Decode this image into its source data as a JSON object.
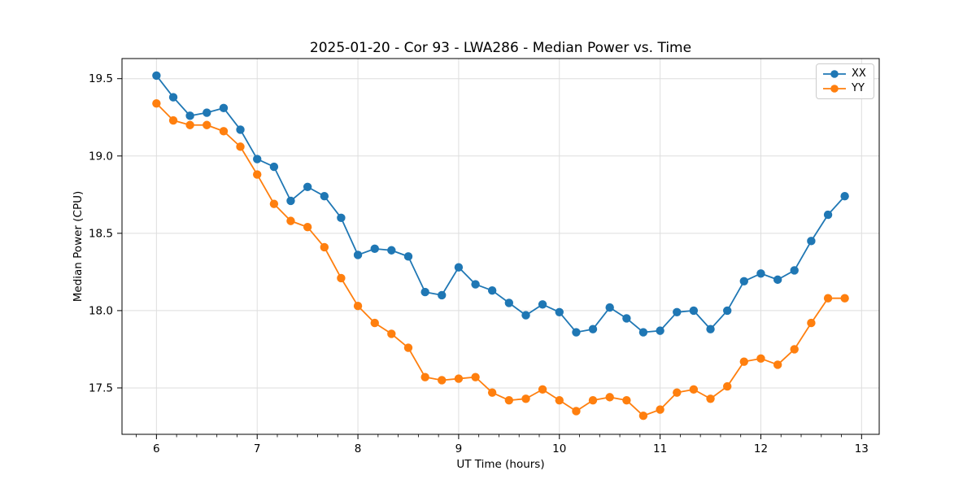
{
  "chart_data": {
    "type": "line",
    "title": "2025-01-20 - Cor 93 - LWA286 - Median Power vs. Time",
    "xlabel": "UT Time (hours)",
    "ylabel": "Median Power (CPU)",
    "xlim": [
      5.658,
      13.175
    ],
    "ylim": [
      17.2,
      19.63
    ],
    "grid": true,
    "grid_color": "#dedede",
    "spine_color": "#000000",
    "background_color": "#ffffff",
    "xticks": {
      "values": [
        6,
        7,
        8,
        9,
        10,
        11,
        12,
        13
      ],
      "labels": [
        "6",
        "7",
        "8",
        "9",
        "10",
        "11",
        "12",
        "13"
      ]
    },
    "yticks": {
      "values": [
        17.5,
        18.0,
        18.5,
        19.0,
        19.5
      ],
      "labels": [
        "17.5",
        "18.0",
        "18.5",
        "19.0",
        "19.5"
      ]
    },
    "minor_xtick_step": 0.2,
    "legend": {
      "position": "upper right"
    },
    "x": [
      6.0,
      6.167,
      6.333,
      6.5,
      6.667,
      6.833,
      7.0,
      7.167,
      7.333,
      7.5,
      7.667,
      7.833,
      8.0,
      8.167,
      8.333,
      8.5,
      8.667,
      8.833,
      9.0,
      9.167,
      9.333,
      9.5,
      9.667,
      9.833,
      10.0,
      10.167,
      10.333,
      10.5,
      10.667,
      10.833,
      11.0,
      11.167,
      11.333,
      11.5,
      11.667,
      11.833,
      12.0,
      12.167,
      12.333,
      12.5,
      12.667,
      12.833
    ],
    "series": [
      {
        "name": "XX",
        "color": "#1f77b4",
        "values": [
          19.52,
          19.38,
          19.26,
          19.28,
          19.31,
          19.17,
          18.98,
          18.93,
          18.71,
          18.8,
          18.74,
          18.6,
          18.36,
          18.4,
          18.39,
          18.35,
          18.12,
          18.1,
          18.28,
          18.17,
          18.13,
          18.05,
          17.97,
          18.04,
          17.99,
          17.86,
          17.88,
          18.02,
          17.95,
          17.86,
          17.87,
          17.99,
          18.0,
          17.88,
          18.0,
          18.19,
          18.24,
          18.2,
          18.26,
          18.45,
          18.62,
          18.74
        ]
      },
      {
        "name": "YY",
        "color": "#ff7f0e",
        "values": [
          19.34,
          19.23,
          19.2,
          19.2,
          19.16,
          19.06,
          18.88,
          18.69,
          18.58,
          18.54,
          18.41,
          18.21,
          18.03,
          17.92,
          17.85,
          17.76,
          17.57,
          17.55,
          17.56,
          17.57,
          17.47,
          17.42,
          17.43,
          17.49,
          17.42,
          17.35,
          17.42,
          17.44,
          17.42,
          17.32,
          17.36,
          17.47,
          17.49,
          17.43,
          17.51,
          17.67,
          17.69,
          17.65,
          17.75,
          17.92,
          18.08,
          18.08
        ]
      }
    ]
  }
}
